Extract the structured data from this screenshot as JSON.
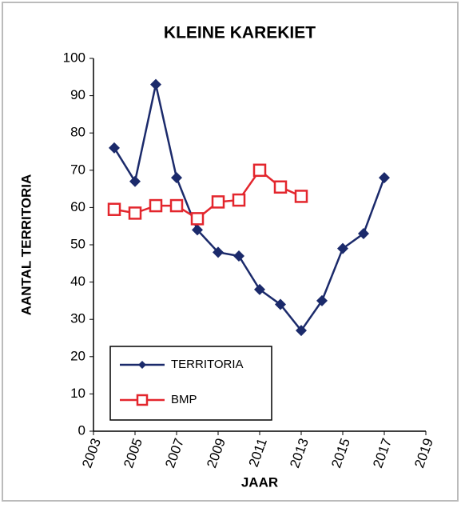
{
  "chart_data": {
    "type": "line",
    "title": "KLEINE KAREKIET",
    "x_label": "JAAR",
    "y_label": "AANTAL TERRITORIA",
    "x": [
      2004,
      2005,
      2006,
      2007,
      2008,
      2009,
      2010,
      2011,
      2012,
      2013,
      2014,
      2015,
      2016,
      2017
    ],
    "series": [
      {
        "name": "TERRITORIA",
        "color": "#1b2a6b",
        "marker": "diamond",
        "values": [
          76,
          67,
          93,
          68,
          54,
          48,
          47,
          38,
          34,
          27,
          35,
          49,
          53,
          68
        ]
      },
      {
        "name": "BMP",
        "color": "#e3262d",
        "marker": "square-open",
        "values": [
          59.5,
          58.5,
          60.5,
          60.5,
          57,
          61.5,
          62,
          70,
          65.5,
          63,
          null,
          null,
          null,
          null
        ]
      }
    ],
    "xlim": [
      2003,
      2019
    ],
    "xticks": [
      2003,
      2005,
      2007,
      2009,
      2011,
      2013,
      2015,
      2017,
      2019
    ],
    "ylim": [
      0,
      100
    ],
    "yticks": [
      0,
      10,
      20,
      30,
      40,
      50,
      60,
      70,
      80,
      90,
      100
    ],
    "legend": "lower left"
  }
}
